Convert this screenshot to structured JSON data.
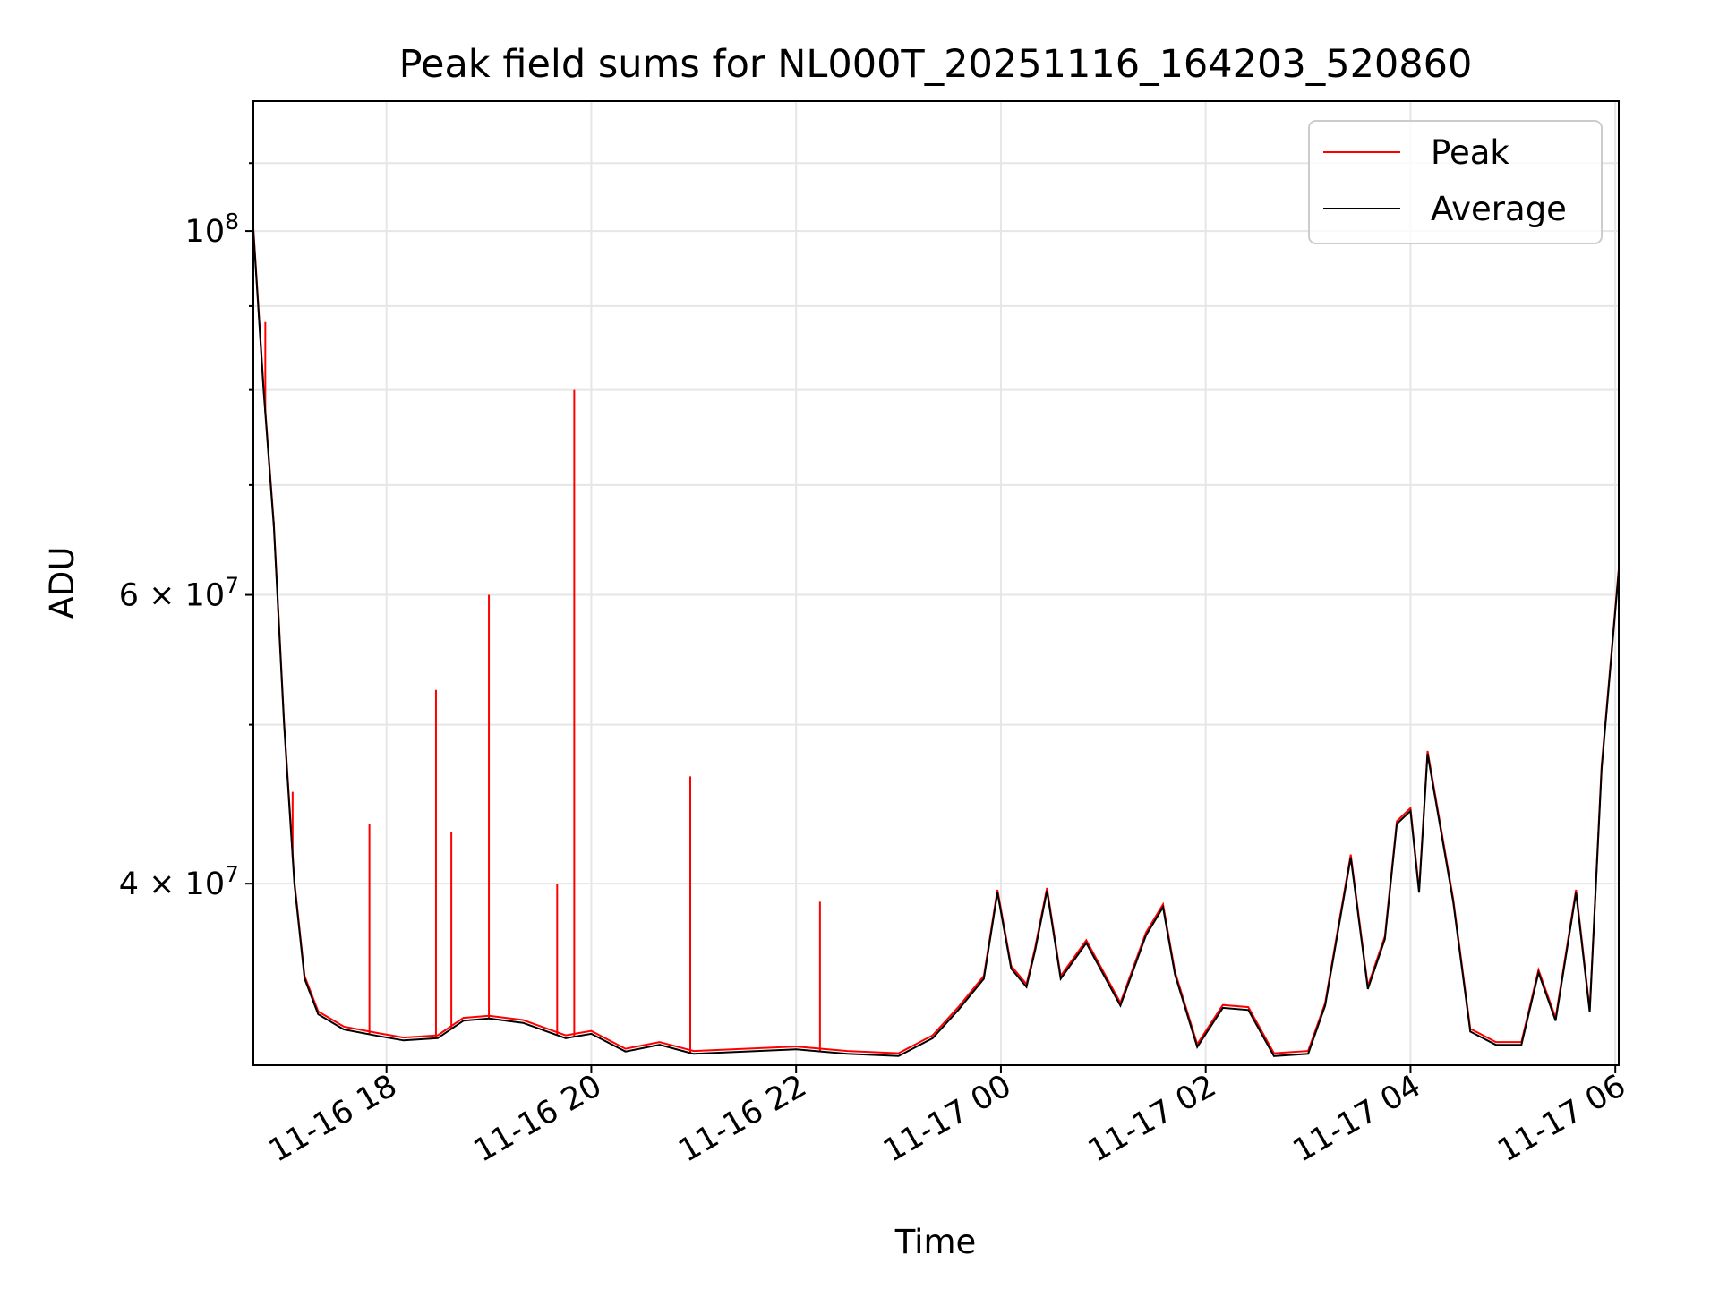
{
  "chart_data": {
    "type": "line",
    "title": "Peak field sums for NL000T_20251116_164203_520860",
    "xlabel": "Time",
    "ylabel": "ADU",
    "yscale": "log",
    "ylim": [
      31000000,
      120000000
    ],
    "xlim": [
      "2025-11-16 16:42",
      "2025-11-17 06:02"
    ],
    "grid": true,
    "legend_position": "upper right",
    "x_ticks": [
      "11-16 18",
      "11-16 20",
      "11-16 22",
      "11-17 00",
      "11-17 02",
      "11-17 04",
      "11-17 06"
    ],
    "y_ticks": [
      {
        "value": 100000000,
        "base": "10",
        "exp": "8",
        "prefix": ""
      },
      {
        "value": 60000000,
        "base": "6 × 10",
        "exp": "7",
        "prefix": ""
      },
      {
        "value": 40000000,
        "base": "4 × 10",
        "exp": "7",
        "prefix": ""
      }
    ],
    "series": [
      {
        "name": "Average",
        "color": "#000000",
        "points": [
          [
            "2025-11-16 16:42",
            100000000
          ],
          [
            "2025-11-16 16:48",
            80000000
          ],
          [
            "2025-11-16 16:54",
            66000000
          ],
          [
            "2025-11-16 17:00",
            50000000
          ],
          [
            "2025-11-16 17:06",
            40000000
          ],
          [
            "2025-11-16 17:12",
            35000000
          ],
          [
            "2025-11-16 17:20",
            33300000
          ],
          [
            "2025-11-16 17:35",
            32600000
          ],
          [
            "2025-11-16 17:55",
            32300000
          ],
          [
            "2025-11-16 18:10",
            32100000
          ],
          [
            "2025-11-16 18:30",
            32200000
          ],
          [
            "2025-11-16 18:45",
            33000000
          ],
          [
            "2025-11-16 19:00",
            33100000
          ],
          [
            "2025-11-16 19:20",
            32900000
          ],
          [
            "2025-11-16 19:45",
            32200000
          ],
          [
            "2025-11-16 20:00",
            32400000
          ],
          [
            "2025-11-16 20:20",
            31600000
          ],
          [
            "2025-11-16 20:40",
            31900000
          ],
          [
            "2025-11-16 21:00",
            31500000
          ],
          [
            "2025-11-16 21:30",
            31600000
          ],
          [
            "2025-11-16 22:00",
            31700000
          ],
          [
            "2025-11-16 22:30",
            31500000
          ],
          [
            "2025-11-16 23:00",
            31400000
          ],
          [
            "2025-11-16 23:20",
            32200000
          ],
          [
            "2025-11-16 23:35",
            33500000
          ],
          [
            "2025-11-16 23:50",
            35000000
          ],
          [
            "2025-11-16 23:58",
            39500000
          ],
          [
            "2025-11-17 00:06",
            35500000
          ],
          [
            "2025-11-17 00:15",
            34600000
          ],
          [
            "2025-11-17 00:20",
            36400000
          ],
          [
            "2025-11-17 00:27",
            39600000
          ],
          [
            "2025-11-17 00:35",
            35000000
          ],
          [
            "2025-11-17 00:50",
            36800000
          ],
          [
            "2025-11-17 01:10",
            33700000
          ],
          [
            "2025-11-17 01:25",
            37200000
          ],
          [
            "2025-11-17 01:35",
            38700000
          ],
          [
            "2025-11-17 01:42",
            35200000
          ],
          [
            "2025-11-17 01:55",
            31800000
          ],
          [
            "2025-11-17 02:10",
            33600000
          ],
          [
            "2025-11-17 02:25",
            33500000
          ],
          [
            "2025-11-17 02:40",
            31400000
          ],
          [
            "2025-11-17 03:00",
            31500000
          ],
          [
            "2025-11-17 03:10",
            33700000
          ],
          [
            "2025-11-17 03:25",
            41500000
          ],
          [
            "2025-11-17 03:35",
            34500000
          ],
          [
            "2025-11-17 03:45",
            37000000
          ],
          [
            "2025-11-17 03:52",
            43500000
          ],
          [
            "2025-11-17 04:00",
            44300000
          ],
          [
            "2025-11-17 04:05",
            39500000
          ],
          [
            "2025-11-17 04:10",
            48000000
          ],
          [
            "2025-11-17 04:25",
            39000000
          ],
          [
            "2025-11-17 04:35",
            32500000
          ],
          [
            "2025-11-17 04:50",
            31900000
          ],
          [
            "2025-11-17 05:05",
            31900000
          ],
          [
            "2025-11-17 05:15",
            35300000
          ],
          [
            "2025-11-17 05:25",
            33000000
          ],
          [
            "2025-11-17 05:37",
            39500000
          ],
          [
            "2025-11-17 05:45",
            33400000
          ],
          [
            "2025-11-17 05:52",
            47000000
          ],
          [
            "2025-11-17 06:02",
            62000000
          ]
        ]
      },
      {
        "name": "Peak",
        "color": "#ff0000",
        "spikes": [
          [
            "2025-11-16 16:49",
            88000000
          ],
          [
            "2025-11-16 16:54",
            66500000
          ],
          [
            "2025-11-16 17:05",
            45500000
          ],
          [
            "2025-11-16 17:50",
            43500000
          ],
          [
            "2025-11-16 18:29",
            52500000
          ],
          [
            "2025-11-16 18:38",
            43000000
          ],
          [
            "2025-11-16 19:00",
            60000000
          ],
          [
            "2025-11-16 19:40",
            40000000
          ],
          [
            "2025-11-16 19:50",
            80000000
          ],
          [
            "2025-11-16 20:58",
            46500000
          ],
          [
            "2025-11-16 22:14",
            39000000
          ]
        ]
      }
    ]
  }
}
